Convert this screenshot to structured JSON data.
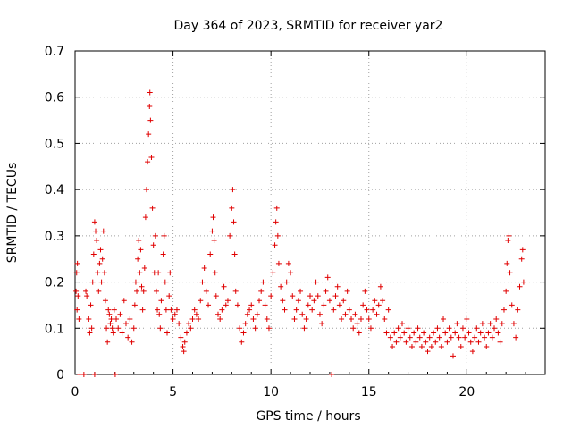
{
  "chart_data": {
    "type": "scatter",
    "title": "Day 364 of 2023, SRMTID for receiver yar2",
    "xlabel": "GPS time / hours",
    "ylabel": "SRMTID / TECUs",
    "xlim": [
      0,
      24
    ],
    "ylim": [
      0,
      0.7
    ],
    "xticks": [
      0,
      5,
      10,
      15,
      20
    ],
    "xtick_labels": [
      "0",
      "5",
      "10",
      "15",
      "20"
    ],
    "yticks": [
      0,
      0.1,
      0.2,
      0.3,
      0.4,
      0.5,
      0.6,
      0.7
    ],
    "ytick_labels": [
      "0",
      "0.1",
      "0.2",
      "0.3",
      "0.4",
      "0.5",
      "0.6",
      "0.7"
    ],
    "grid": true,
    "marker": "+",
    "series": [
      {
        "name": "SRMTID yar2",
        "color": "#e00000",
        "points": [
          [
            0.05,
            0.18
          ],
          [
            0.08,
            0.22
          ],
          [
            0.1,
            0.14
          ],
          [
            0.12,
            0.24
          ],
          [
            0.15,
            0.17
          ],
          [
            0.2,
            0.12
          ],
          [
            0.25,
            0.0
          ],
          [
            0.45,
            0.0
          ],
          [
            0.55,
            0.18
          ],
          [
            0.6,
            0.17
          ],
          [
            0.7,
            0.12
          ],
          [
            0.75,
            0.09
          ],
          [
            0.8,
            0.15
          ],
          [
            0.85,
            0.1
          ],
          [
            0.9,
            0.2
          ],
          [
            0.95,
            0.26
          ],
          [
            1.0,
            0.33
          ],
          [
            1.05,
            0.31
          ],
          [
            1.1,
            0.29
          ],
          [
            1.15,
            0.22
          ],
          [
            1.0,
            0.0
          ],
          [
            1.2,
            0.18
          ],
          [
            1.25,
            0.24
          ],
          [
            1.3,
            0.27
          ],
          [
            1.35,
            0.2
          ],
          [
            1.4,
            0.25
          ],
          [
            1.45,
            0.31
          ],
          [
            1.5,
            0.22
          ],
          [
            1.55,
            0.16
          ],
          [
            1.6,
            0.1
          ],
          [
            1.65,
            0.07
          ],
          [
            1.7,
            0.14
          ],
          [
            1.75,
            0.13
          ],
          [
            1.8,
            0.11
          ],
          [
            1.85,
            0.12
          ],
          [
            1.9,
            0.1
          ],
          [
            1.95,
            0.09
          ],
          [
            2.0,
            0.14
          ],
          [
            2.05,
            0.0
          ],
          [
            2.1,
            0.12
          ],
          [
            2.2,
            0.1
          ],
          [
            2.3,
            0.13
          ],
          [
            2.4,
            0.09
          ],
          [
            2.5,
            0.16
          ],
          [
            2.6,
            0.11
          ],
          [
            2.7,
            0.08
          ],
          [
            2.8,
            0.12
          ],
          [
            2.9,
            0.07
          ],
          [
            3.0,
            0.1
          ],
          [
            3.05,
            0.15
          ],
          [
            3.1,
            0.2
          ],
          [
            3.15,
            0.18
          ],
          [
            3.2,
            0.25
          ],
          [
            3.25,
            0.29
          ],
          [
            3.3,
            0.22
          ],
          [
            3.35,
            0.27
          ],
          [
            3.4,
            0.19
          ],
          [
            3.45,
            0.14
          ],
          [
            3.5,
            0.18
          ],
          [
            3.55,
            0.23
          ],
          [
            3.6,
            0.34
          ],
          [
            3.65,
            0.4
          ],
          [
            3.7,
            0.46
          ],
          [
            3.75,
            0.52
          ],
          [
            3.8,
            0.58
          ],
          [
            3.82,
            0.61
          ],
          [
            3.85,
            0.55
          ],
          [
            3.9,
            0.47
          ],
          [
            3.95,
            0.36
          ],
          [
            4.0,
            0.28
          ],
          [
            4.05,
            0.22
          ],
          [
            4.1,
            0.3
          ],
          [
            4.15,
            0.18
          ],
          [
            4.2,
            0.14
          ],
          [
            4.25,
            0.22
          ],
          [
            4.3,
            0.13
          ],
          [
            4.35,
            0.1
          ],
          [
            4.4,
            0.16
          ],
          [
            4.5,
            0.26
          ],
          [
            4.55,
            0.3
          ],
          [
            4.6,
            0.2
          ],
          [
            4.65,
            0.14
          ],
          [
            4.7,
            0.09
          ],
          [
            4.8,
            0.17
          ],
          [
            4.85,
            0.22
          ],
          [
            4.9,
            0.14
          ],
          [
            5.0,
            0.12
          ],
          [
            5.1,
            0.13
          ],
          [
            5.2,
            0.14
          ],
          [
            5.3,
            0.11
          ],
          [
            5.4,
            0.08
          ],
          [
            5.5,
            0.06
          ],
          [
            5.55,
            0.05
          ],
          [
            5.6,
            0.07
          ],
          [
            5.7,
            0.09
          ],
          [
            5.8,
            0.11
          ],
          [
            5.9,
            0.1
          ],
          [
            6.0,
            0.12
          ],
          [
            6.1,
            0.14
          ],
          [
            6.2,
            0.13
          ],
          [
            6.3,
            0.12
          ],
          [
            6.4,
            0.16
          ],
          [
            6.5,
            0.2
          ],
          [
            6.6,
            0.23
          ],
          [
            6.7,
            0.18
          ],
          [
            6.8,
            0.15
          ],
          [
            6.9,
            0.26
          ],
          [
            7.0,
            0.31
          ],
          [
            7.05,
            0.34
          ],
          [
            7.1,
            0.29
          ],
          [
            7.15,
            0.22
          ],
          [
            7.2,
            0.17
          ],
          [
            7.3,
            0.13
          ],
          [
            7.4,
            0.12
          ],
          [
            7.5,
            0.14
          ],
          [
            7.6,
            0.19
          ],
          [
            7.7,
            0.15
          ],
          [
            7.8,
            0.16
          ],
          [
            7.9,
            0.3
          ],
          [
            8.0,
            0.36
          ],
          [
            8.05,
            0.4
          ],
          [
            8.1,
            0.33
          ],
          [
            8.15,
            0.26
          ],
          [
            8.2,
            0.18
          ],
          [
            8.3,
            0.15
          ],
          [
            8.4,
            0.1
          ],
          [
            8.5,
            0.07
          ],
          [
            8.6,
            0.09
          ],
          [
            8.7,
            0.11
          ],
          [
            8.8,
            0.13
          ],
          [
            8.9,
            0.14
          ],
          [
            9.0,
            0.15
          ],
          [
            9.1,
            0.12
          ],
          [
            9.2,
            0.1
          ],
          [
            9.3,
            0.13
          ],
          [
            9.4,
            0.16
          ],
          [
            9.5,
            0.18
          ],
          [
            9.6,
            0.2
          ],
          [
            9.7,
            0.15
          ],
          [
            9.8,
            0.12
          ],
          [
            9.9,
            0.1
          ],
          [
            10.0,
            0.17
          ],
          [
            10.1,
            0.22
          ],
          [
            10.2,
            0.28
          ],
          [
            10.25,
            0.33
          ],
          [
            10.3,
            0.36
          ],
          [
            10.35,
            0.3
          ],
          [
            10.4,
            0.24
          ],
          [
            10.5,
            0.19
          ],
          [
            10.6,
            0.16
          ],
          [
            10.7,
            0.14
          ],
          [
            10.8,
            0.2
          ],
          [
            10.9,
            0.24
          ],
          [
            11.0,
            0.22
          ],
          [
            11.1,
            0.17
          ],
          [
            11.2,
            0.12
          ],
          [
            11.3,
            0.14
          ],
          [
            11.4,
            0.16
          ],
          [
            11.5,
            0.18
          ],
          [
            11.6,
            0.13
          ],
          [
            11.7,
            0.1
          ],
          [
            11.8,
            0.12
          ],
          [
            11.9,
            0.15
          ],
          [
            12.0,
            0.17
          ],
          [
            12.1,
            0.14
          ],
          [
            12.2,
            0.16
          ],
          [
            12.3,
            0.2
          ],
          [
            12.4,
            0.17
          ],
          [
            12.5,
            0.13
          ],
          [
            12.6,
            0.11
          ],
          [
            12.7,
            0.15
          ],
          [
            12.8,
            0.18
          ],
          [
            12.9,
            0.21
          ],
          [
            13.0,
            0.16
          ],
          [
            13.1,
            0.0
          ],
          [
            13.2,
            0.14
          ],
          [
            13.3,
            0.17
          ],
          [
            13.4,
            0.19
          ],
          [
            13.5,
            0.15
          ],
          [
            13.6,
            0.12
          ],
          [
            13.7,
            0.16
          ],
          [
            13.8,
            0.13
          ],
          [
            13.9,
            0.18
          ],
          [
            14.0,
            0.14
          ],
          [
            14.1,
            0.12
          ],
          [
            14.2,
            0.1
          ],
          [
            14.3,
            0.13
          ],
          [
            14.4,
            0.11
          ],
          [
            14.5,
            0.09
          ],
          [
            14.6,
            0.12
          ],
          [
            14.7,
            0.15
          ],
          [
            14.8,
            0.18
          ],
          [
            14.9,
            0.14
          ],
          [
            15.0,
            0.12
          ],
          [
            15.1,
            0.1
          ],
          [
            15.2,
            0.14
          ],
          [
            15.3,
            0.16
          ],
          [
            15.4,
            0.13
          ],
          [
            15.5,
            0.15
          ],
          [
            15.6,
            0.19
          ],
          [
            15.7,
            0.16
          ],
          [
            15.8,
            0.12
          ],
          [
            15.9,
            0.09
          ],
          [
            16.0,
            0.14
          ],
          [
            16.1,
            0.08
          ],
          [
            16.2,
            0.06
          ],
          [
            16.3,
            0.09
          ],
          [
            16.4,
            0.07
          ],
          [
            16.5,
            0.1
          ],
          [
            16.6,
            0.08
          ],
          [
            16.7,
            0.11
          ],
          [
            16.8,
            0.09
          ],
          [
            16.9,
            0.07
          ],
          [
            17.0,
            0.1
          ],
          [
            17.1,
            0.08
          ],
          [
            17.2,
            0.06
          ],
          [
            17.3,
            0.09
          ],
          [
            17.4,
            0.07
          ],
          [
            17.5,
            0.1
          ],
          [
            17.6,
            0.08
          ],
          [
            17.7,
            0.06
          ],
          [
            17.8,
            0.09
          ],
          [
            17.9,
            0.07
          ],
          [
            18.0,
            0.05
          ],
          [
            18.1,
            0.08
          ],
          [
            18.2,
            0.06
          ],
          [
            18.3,
            0.09
          ],
          [
            18.4,
            0.07
          ],
          [
            18.5,
            0.1
          ],
          [
            18.6,
            0.08
          ],
          [
            18.7,
            0.06
          ],
          [
            18.8,
            0.12
          ],
          [
            18.9,
            0.09
          ],
          [
            19.0,
            0.07
          ],
          [
            19.1,
            0.1
          ],
          [
            19.2,
            0.08
          ],
          [
            19.3,
            0.04
          ],
          [
            19.4,
            0.09
          ],
          [
            19.5,
            0.11
          ],
          [
            19.6,
            0.08
          ],
          [
            19.7,
            0.06
          ],
          [
            19.8,
            0.1
          ],
          [
            19.9,
            0.08
          ],
          [
            20.0,
            0.12
          ],
          [
            20.1,
            0.09
          ],
          [
            20.2,
            0.07
          ],
          [
            20.3,
            0.05
          ],
          [
            20.4,
            0.08
          ],
          [
            20.5,
            0.1
          ],
          [
            20.6,
            0.07
          ],
          [
            20.7,
            0.09
          ],
          [
            20.8,
            0.11
          ],
          [
            20.9,
            0.08
          ],
          [
            21.0,
            0.06
          ],
          [
            21.1,
            0.09
          ],
          [
            21.2,
            0.11
          ],
          [
            21.3,
            0.08
          ],
          [
            21.4,
            0.1
          ],
          [
            21.5,
            0.12
          ],
          [
            21.6,
            0.09
          ],
          [
            21.7,
            0.07
          ],
          [
            21.8,
            0.11
          ],
          [
            21.9,
            0.14
          ],
          [
            22.0,
            0.18
          ],
          [
            22.05,
            0.24
          ],
          [
            22.1,
            0.29
          ],
          [
            22.15,
            0.3
          ],
          [
            22.2,
            0.22
          ],
          [
            22.3,
            0.15
          ],
          [
            22.4,
            0.11
          ],
          [
            22.5,
            0.08
          ],
          [
            22.6,
            0.14
          ],
          [
            22.7,
            0.19
          ],
          [
            22.8,
            0.25
          ],
          [
            22.85,
            0.27
          ],
          [
            22.9,
            0.2
          ]
        ]
      }
    ]
  }
}
